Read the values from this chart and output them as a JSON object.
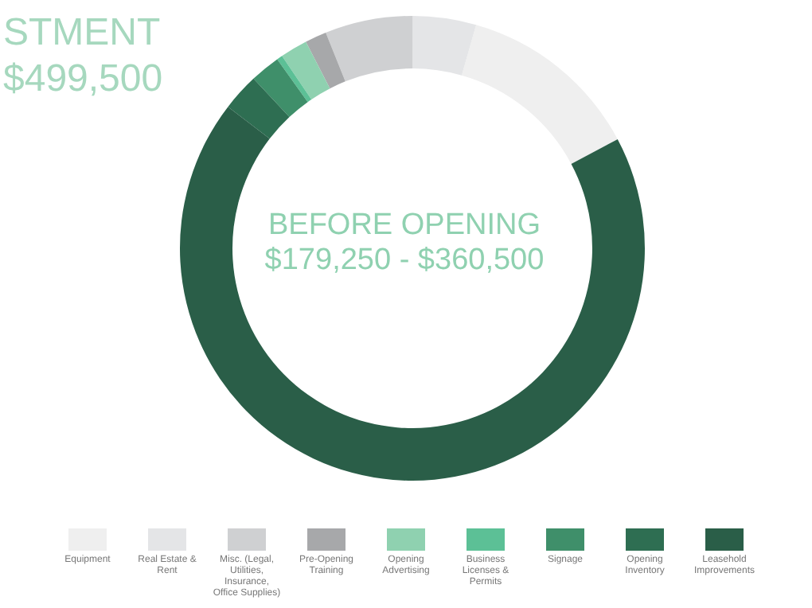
{
  "chart_data": {
    "type": "donut",
    "title": "BEFORE OPENING",
    "subtitle": "$179,250 - $360,500",
    "annotations": [
      "STMENT",
      "$499,500"
    ],
    "categories": [
      "Equipment",
      "Real Estate & Rent",
      "Misc. (Legal, Utilities, Insurance, Office Supplies)",
      "Pre-Opening Training",
      "Opening Advertising",
      "Business Licenses & Permits",
      "Signage",
      "Opening Inventory",
      "Leasehold Improvements"
    ],
    "values": [
      12.8,
      4.4,
      6.1,
      1.5,
      1.9,
      0.4,
      2.1,
      2.6,
      68.2
    ],
    "colors": [
      "#efefef",
      "#e4e5e7",
      "#cfd0d2",
      "#a7a8aa",
      "#8fd1b0",
      "#5cc096",
      "#3f8f6a",
      "#2e6e52",
      "#2a5e48"
    ],
    "legend": "bottom"
  }
}
